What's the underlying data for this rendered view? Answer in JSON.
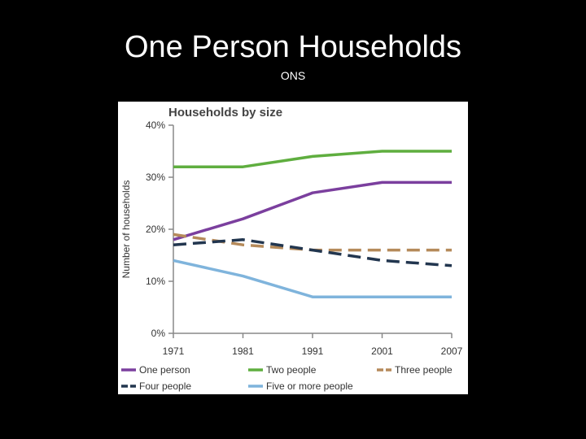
{
  "slide": {
    "title": "One Person Households",
    "subtitle": "ONS"
  },
  "chart_data": {
    "type": "line",
    "title": "Households by size",
    "xlabel": "",
    "ylabel": "Number of households",
    "categories": [
      "1971",
      "1981",
      "1991",
      "2001",
      "2007"
    ],
    "y_ticks": [
      "0%",
      "10%",
      "20%",
      "30%",
      "40%"
    ],
    "ylim": [
      0,
      40
    ],
    "grid": false,
    "legend_position": "bottom",
    "series": [
      {
        "name": "One person",
        "values": [
          18,
          22,
          27,
          29,
          29
        ],
        "color": "#7b3f9e",
        "dashed": false
      },
      {
        "name": "Two people",
        "values": [
          32,
          32,
          34,
          35,
          35
        ],
        "color": "#5fae3f",
        "dashed": false
      },
      {
        "name": "Three people",
        "values": [
          19,
          17,
          16,
          16,
          16
        ],
        "color": "#b58a5a",
        "dashed": true
      },
      {
        "name": "Four people",
        "values": [
          17,
          18,
          16,
          14,
          13
        ],
        "color": "#22364f",
        "dashed": true
      },
      {
        "name": "Five or more people",
        "values": [
          14,
          11,
          7,
          7,
          7
        ],
        "color": "#7fb4dc",
        "dashed": false
      }
    ]
  }
}
